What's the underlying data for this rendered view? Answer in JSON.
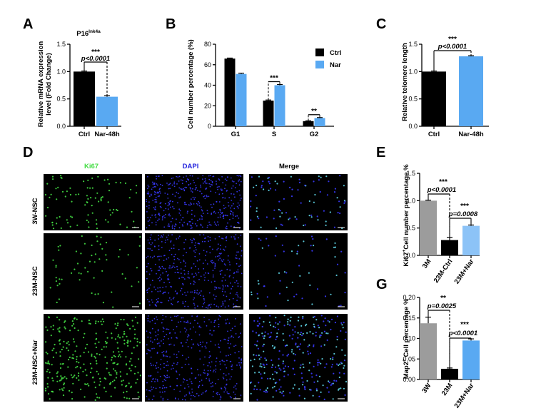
{
  "colors": {
    "ctrl": "#000000",
    "nar": "#59a9f2",
    "nar_light": "#8cc3f7",
    "gray": "#9c9c9c",
    "ki67": "#44dd44",
    "dapi": "#3a3aff",
    "merge": "#5fd6e8"
  },
  "panel_labels": {
    "A": "A",
    "B": "B",
    "C": "C",
    "D": "D",
    "E": "E",
    "G": "G"
  },
  "chart_data": [
    {
      "id": "A",
      "type": "bar",
      "title": "P16",
      "title_sup": "Ink4a",
      "ylabel_line1": "Relative mRNA expression",
      "ylabel_line2": "level (Fold Change)",
      "categories": [
        "Ctrl",
        "Nar-48h"
      ],
      "values": [
        1.0,
        0.54
      ],
      "errors": [
        0.01,
        0.02
      ],
      "colors": [
        "#000000",
        "#59a9f2"
      ],
      "ylim": [
        0,
        1.5
      ],
      "yticks": [
        {
          "v": 0,
          "t": "0.0"
        },
        {
          "v": 0.5,
          "t": "0.5"
        },
        {
          "v": 1.0,
          "t": "1.0"
        },
        {
          "v": 1.5,
          "t": "1.5"
        }
      ],
      "sig": "***",
      "p": "p<0.0001"
    },
    {
      "id": "B",
      "type": "bar",
      "ylabel": "Cell number percentage (%)",
      "categories": [
        "G1",
        "S",
        "G2"
      ],
      "series": [
        {
          "name": "Ctrl",
          "values": [
            66,
            25,
            5
          ],
          "errors": [
            0.5,
            0.6,
            0.3
          ],
          "color": "#000000"
        },
        {
          "name": "Nar",
          "values": [
            51,
            40,
            8
          ],
          "errors": [
            0.8,
            0.7,
            0.5
          ],
          "color": "#59a9f2"
        }
      ],
      "ylim": [
        0,
        80
      ],
      "yticks": [
        {
          "v": 0,
          "t": "0"
        },
        {
          "v": 20,
          "t": "20"
        },
        {
          "v": 40,
          "t": "40"
        },
        {
          "v": 60,
          "t": "60"
        },
        {
          "v": 80,
          "t": "80"
        }
      ],
      "sigs": [
        {
          "category": "S",
          "label": "***"
        },
        {
          "category": "G2",
          "label": "**"
        }
      ],
      "legend": [
        "Ctrl",
        "Nar"
      ]
    },
    {
      "id": "C",
      "type": "bar",
      "ylabel": "Relative telomere length",
      "categories": [
        "Ctrl",
        "Nar-48h"
      ],
      "values": [
        1.0,
        1.28
      ],
      "errors": [
        0.01,
        0.01
      ],
      "colors": [
        "#000000",
        "#59a9f2"
      ],
      "ylim": [
        0,
        1.5
      ],
      "yticks": [
        {
          "v": 0,
          "t": "0.0"
        },
        {
          "v": 0.5,
          "t": "0.5"
        },
        {
          "v": 1.0,
          "t": "1.0"
        },
        {
          "v": 1.5,
          "t": "1.5"
        }
      ],
      "sig": "***",
      "p": "p<0.0001"
    },
    {
      "id": "E",
      "type": "bar",
      "ylabel_sup": "+",
      "ylabel_pre": "Ki67",
      "ylabel_post": "Cell number percentage %",
      "categories": [
        "3M",
        "23M-Ctrl",
        "23M+Nar"
      ],
      "values": [
        1.0,
        0.28,
        0.54
      ],
      "errors": [
        0.01,
        0.05,
        0.015
      ],
      "colors": [
        "#9c9c9c",
        "#000000",
        "#8cc3f7"
      ],
      "ylim": [
        0,
        1.5
      ],
      "yticks": [
        {
          "v": 0,
          "t": "0.0"
        },
        {
          "v": 0.5,
          "t": "0.5"
        },
        {
          "v": 1.0,
          "t": "1.0"
        },
        {
          "v": 1.5,
          "t": "1.5"
        }
      ],
      "comparisons": [
        {
          "from": 0,
          "to": 1,
          "sig": "***",
          "p": "p<0.0001"
        },
        {
          "from": 1,
          "to": 2,
          "sig": "***",
          "p": "p=0.0008"
        }
      ]
    },
    {
      "id": "G",
      "type": "bar",
      "ylabel_pre": "Map2",
      "ylabel_sup": "+",
      "ylabel_post": " Cell percentage %",
      "categories": [
        "3W",
        "23M",
        "23M+Nar"
      ],
      "values": [
        0.137,
        0.026,
        0.095
      ],
      "errors": [
        0.015,
        0.002,
        0.004
      ],
      "colors": [
        "#9c9c9c",
        "#000000",
        "#59a9f2"
      ],
      "ylim": [
        0,
        0.2
      ],
      "yticks": [
        {
          "v": 0,
          "t": "0.00"
        },
        {
          "v": 0.05,
          "t": "0.05"
        },
        {
          "v": 0.1,
          "t": "0.10"
        },
        {
          "v": 0.15,
          "t": "0.15"
        },
        {
          "v": 0.2,
          "t": "0.20"
        }
      ],
      "comparisons": [
        {
          "from": 0,
          "to": 1,
          "sig": "**",
          "p": "p=0.0025"
        },
        {
          "from": 1,
          "to": 2,
          "sig": "***",
          "p": "p<0.0001"
        }
      ]
    }
  ],
  "micrographs": {
    "columns": [
      "Ki67",
      "DAPI",
      "Merge"
    ],
    "rows": [
      "3W-NSC",
      "23M-NSC",
      "23M-NSC+Nar"
    ],
    "densities": [
      [
        90,
        400,
        90
      ],
      [
        60,
        420,
        60
      ],
      [
        300,
        420,
        300
      ]
    ]
  }
}
